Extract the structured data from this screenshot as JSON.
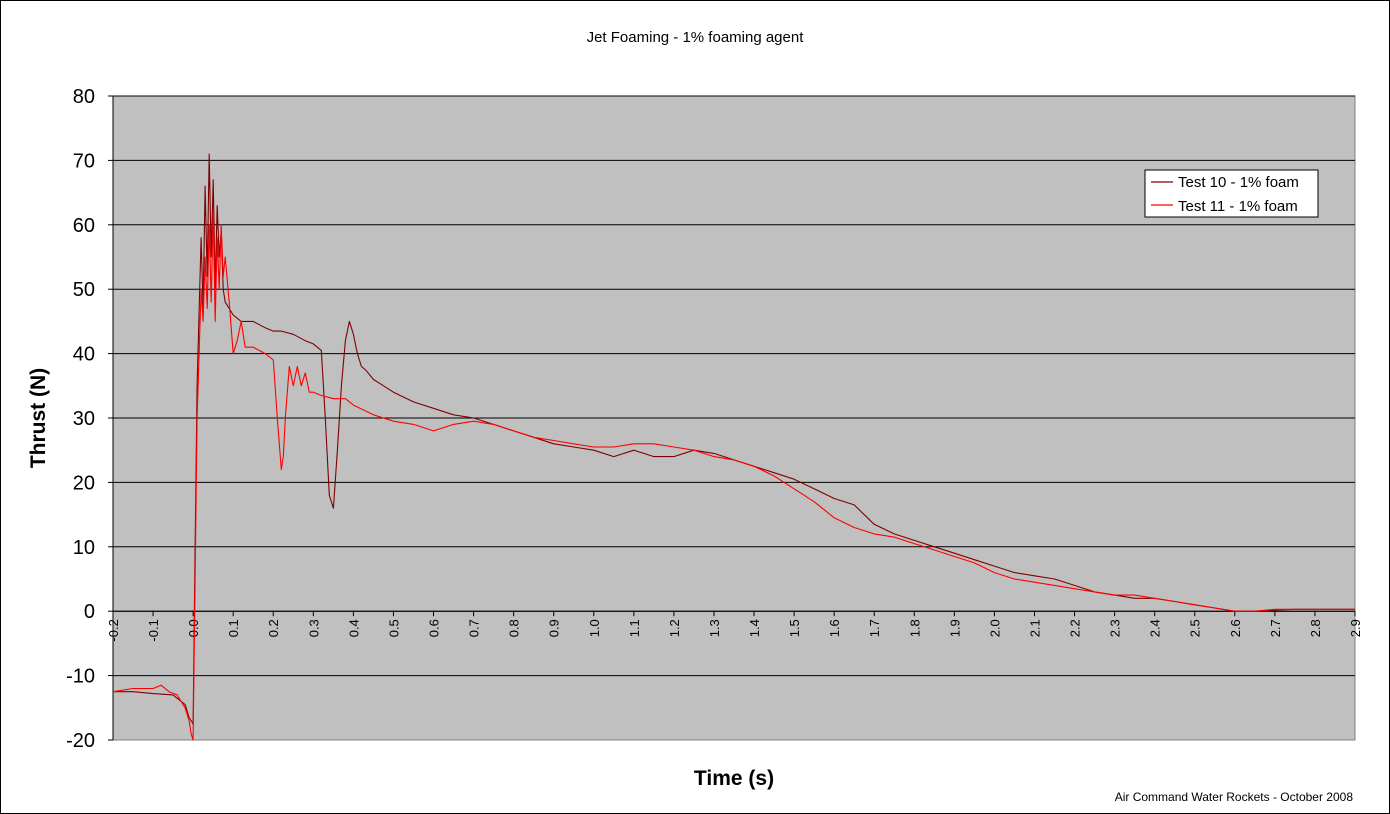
{
  "chart_data": {
    "type": "line",
    "title": "Jet Foaming - 1% foaming agent",
    "xlabel": "Time (s)",
    "ylabel": "Thrust (N)",
    "credit": "Air Command Water Rockets - October 2008",
    "xlim": [
      -0.2,
      2.9
    ],
    "ylim": [
      -20,
      80
    ],
    "x_ticks": [
      "-0.2",
      "-0.1",
      "0.0",
      "0.1",
      "0.2",
      "0.3",
      "0.4",
      "0.5",
      "0.6",
      "0.7",
      "0.8",
      "0.9",
      "1.0",
      "1.1",
      "1.2",
      "1.3",
      "1.4",
      "1.5",
      "1.6",
      "1.7",
      "1.8",
      "1.9",
      "2.0",
      "2.1",
      "2.2",
      "2.3",
      "2.4",
      "2.5",
      "2.6",
      "2.7",
      "2.8",
      "2.9"
    ],
    "y_ticks": [
      "-20",
      "-10",
      "0",
      "10",
      "20",
      "30",
      "40",
      "50",
      "60",
      "70",
      "80"
    ],
    "grid": "horizontal",
    "plot_background": "#c0c0c0",
    "legend_position": "top-right",
    "series": [
      {
        "name": "Test 10 - 1% foam",
        "color": "#800000",
        "x": [
          -0.2,
          -0.15,
          -0.1,
          -0.05,
          -0.02,
          -0.01,
          0.0,
          0.005,
          0.01,
          0.02,
          0.025,
          0.03,
          0.035,
          0.04,
          0.045,
          0.05,
          0.055,
          0.06,
          0.065,
          0.07,
          0.075,
          0.08,
          0.09,
          0.1,
          0.12,
          0.15,
          0.18,
          0.2,
          0.22,
          0.25,
          0.28,
          0.3,
          0.32,
          0.33,
          0.34,
          0.35,
          0.36,
          0.37,
          0.38,
          0.39,
          0.4,
          0.41,
          0.42,
          0.43,
          0.45,
          0.5,
          0.55,
          0.6,
          0.65,
          0.7,
          0.75,
          0.8,
          0.85,
          0.9,
          0.95,
          1.0,
          1.05,
          1.1,
          1.15,
          1.2,
          1.25,
          1.3,
          1.35,
          1.4,
          1.45,
          1.5,
          1.55,
          1.6,
          1.65,
          1.7,
          1.75,
          1.8,
          1.85,
          1.9,
          1.95,
          2.0,
          2.05,
          2.1,
          2.15,
          2.2,
          2.25,
          2.3,
          2.35,
          2.4,
          2.45,
          2.5,
          2.55,
          2.6,
          2.65,
          2.7,
          2.75,
          2.8,
          2.85,
          2.9
        ],
        "y": [
          -12.5,
          -12.5,
          -12.8,
          -13.0,
          -14.5,
          -16.5,
          -17.5,
          10,
          35,
          58,
          47,
          66,
          52,
          71,
          55,
          67,
          50,
          63,
          55,
          59,
          50,
          48,
          47,
          46,
          45,
          45,
          44,
          43.5,
          43.5,
          43,
          42,
          41.5,
          40.5,
          30,
          18,
          16,
          25,
          35,
          42,
          45,
          43,
          40,
          38,
          37.5,
          36,
          34,
          32.5,
          31.5,
          30.5,
          30,
          29,
          28,
          27,
          26,
          25.5,
          25,
          24,
          25,
          24,
          24,
          25,
          24.5,
          23.5,
          22.5,
          21.5,
          20.5,
          19,
          17.5,
          16.5,
          13.5,
          12,
          11,
          10,
          9,
          8,
          7,
          6,
          5.5,
          5,
          4,
          3,
          2.5,
          2,
          2,
          1.5,
          1,
          0.5,
          0,
          0,
          0.2,
          0.3,
          0.3,
          0.3,
          0.3
        ]
      },
      {
        "name": "Test 11 - 1% foam",
        "color": "#ff0000",
        "x": [
          -0.2,
          -0.15,
          -0.1,
          -0.08,
          -0.06,
          -0.04,
          -0.02,
          -0.01,
          -0.005,
          0.0,
          0.005,
          0.01,
          0.02,
          0.025,
          0.03,
          0.035,
          0.04,
          0.045,
          0.05,
          0.055,
          0.06,
          0.065,
          0.07,
          0.075,
          0.08,
          0.09,
          0.1,
          0.11,
          0.12,
          0.13,
          0.15,
          0.18,
          0.2,
          0.21,
          0.22,
          0.225,
          0.23,
          0.24,
          0.25,
          0.26,
          0.27,
          0.28,
          0.29,
          0.3,
          0.32,
          0.35,
          0.38,
          0.4,
          0.45,
          0.5,
          0.55,
          0.6,
          0.65,
          0.7,
          0.75,
          0.8,
          0.85,
          0.9,
          0.95,
          1.0,
          1.05,
          1.1,
          1.15,
          1.2,
          1.25,
          1.3,
          1.35,
          1.4,
          1.45,
          1.5,
          1.55,
          1.6,
          1.65,
          1.7,
          1.75,
          1.8,
          1.85,
          1.9,
          1.95,
          2.0,
          2.05,
          2.1,
          2.15,
          2.2,
          2.25,
          2.3,
          2.35,
          2.4,
          2.45,
          2.5,
          2.55,
          2.6,
          2.65,
          2.7,
          2.75,
          2.8,
          2.85,
          2.9
        ],
        "y": [
          -12.5,
          -12,
          -12,
          -11.5,
          -12.5,
          -13,
          -15,
          -17,
          -19,
          -20,
          5,
          30,
          50,
          45,
          55,
          47,
          60,
          48,
          62,
          45,
          58,
          50,
          60,
          52,
          55,
          48,
          40,
          42,
          45,
          41,
          41,
          40,
          39,
          30,
          22,
          24,
          30,
          38,
          35,
          38,
          35,
          37,
          34,
          34,
          33.5,
          33,
          33,
          32,
          30.5,
          29.5,
          29,
          28,
          29,
          29.5,
          29,
          28,
          27,
          26.5,
          26,
          25.5,
          25.5,
          26,
          26,
          25.5,
          25,
          24,
          23.5,
          22.5,
          21,
          19,
          17,
          14.5,
          13,
          12,
          11.5,
          10.5,
          9.5,
          8.5,
          7.5,
          6,
          5,
          4.5,
          4,
          3.5,
          3,
          2.5,
          2.5,
          2,
          1.5,
          1,
          0.5,
          0,
          0,
          0.3,
          0.3,
          0.3,
          0.3,
          0.3
        ]
      }
    ]
  }
}
